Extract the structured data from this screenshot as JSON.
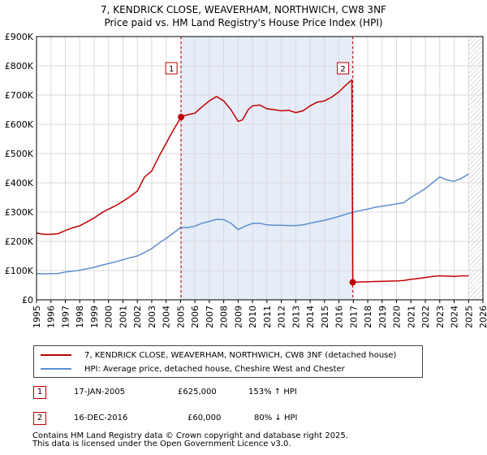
{
  "title_lines": [
    "7, KENDRICK CLOSE, WEAVERHAM, NORTHWICH, CW8 3NF",
    "Price paid vs. HM Land Registry's House Price Index (HPI)"
  ],
  "chart_data": {
    "type": "line",
    "title": "7, KENDRICK CLOSE, WEAVERHAM, NORTHWICH, CW8 3NF — Price paid vs. HM Land Registry's House Price Index (HPI)",
    "xlabel": "",
    "ylabel": "",
    "xlim": [
      1995,
      2026
    ],
    "ylim": [
      0,
      900000
    ],
    "x_ticks": [
      "1995",
      "1996",
      "1997",
      "1998",
      "1999",
      "2000",
      "2001",
      "2002",
      "2003",
      "2004",
      "2005",
      "2006",
      "2007",
      "2008",
      "2009",
      "2010",
      "2011",
      "2012",
      "2013",
      "2014",
      "2015",
      "2016",
      "2017",
      "2018",
      "2019",
      "2020",
      "2021",
      "2022",
      "2023",
      "2024",
      "2025",
      "2026"
    ],
    "y_ticks": [
      {
        "value": 0,
        "label": "£0"
      },
      {
        "value": 100000,
        "label": "£100K"
      },
      {
        "value": 200000,
        "label": "£200K"
      },
      {
        "value": 300000,
        "label": "£300K"
      },
      {
        "value": 400000,
        "label": "£400K"
      },
      {
        "value": 500000,
        "label": "£500K"
      },
      {
        "value": 600000,
        "label": "£600K"
      },
      {
        "value": 700000,
        "label": "£700K"
      },
      {
        "value": 800000,
        "label": "£800K"
      },
      {
        "value": 900000,
        "label": "£900K"
      }
    ],
    "grid": true,
    "shaded_period": [
      2005.04,
      2016.96
    ],
    "future_hatch_from": 2025.0,
    "series": [
      {
        "name": "7, KENDRICK CLOSE, WEAVERHAM, NORTHWICH, CW8 3NF (detached house)",
        "color": "#c00000",
        "x": [
          1995.0,
          1995.5,
          1996.0,
          1996.5,
          1997.0,
          1997.5,
          1998.0,
          1998.5,
          1999.0,
          1999.5,
          2000.0,
          2000.5,
          2001.0,
          2001.5,
          2002.0,
          2002.5,
          2003.0,
          2003.5,
          2004.0,
          2004.5,
          2005.04,
          2005.5,
          2006.0,
          2006.5,
          2007.0,
          2007.5,
          2008.0,
          2008.5,
          2009.0,
          2009.3,
          2009.7,
          2010.0,
          2010.5,
          2011.0,
          2011.5,
          2012.0,
          2012.5,
          2013.0,
          2013.5,
          2014.0,
          2014.5,
          2015.0,
          2015.5,
          2016.0,
          2016.5,
          2016.9,
          2016.96,
          2017.5,
          2018.0,
          2018.5,
          2019.0,
          2019.5,
          2020.0,
          2020.5,
          2021.0,
          2021.5,
          2022.0,
          2022.5,
          2023.0,
          2023.5,
          2024.0,
          2024.5,
          2025.0
        ],
        "y": [
          228000,
          224000,
          224000,
          226000,
          237000,
          246000,
          253000,
          266000,
          280000,
          297000,
          310000,
          322000,
          337000,
          353000,
          372000,
          420000,
          440000,
          490000,
          535000,
          580000,
          625000,
          633000,
          638000,
          660000,
          680000,
          695000,
          680000,
          650000,
          610000,
          615000,
          650000,
          663000,
          666000,
          653000,
          650000,
          646000,
          648000,
          640000,
          646000,
          663000,
          676000,
          680000,
          693000,
          711000,
          735000,
          752000,
          60000,
          61000,
          62000,
          62500,
          63000,
          64000,
          64500,
          66000,
          70000,
          73000,
          76000,
          80000,
          82000,
          81000,
          80000,
          82000,
          82000
        ]
      },
      {
        "name": "HPI: Average price, detached house, Cheshire West and Chester",
        "color": "#5b8fd0",
        "x": [
          1995.0,
          1995.5,
          1996.0,
          1996.5,
          1997.0,
          1997.5,
          1998.0,
          1998.5,
          1999.0,
          1999.5,
          2000.0,
          2000.5,
          2001.0,
          2001.5,
          2002.0,
          2002.5,
          2003.0,
          2003.5,
          2004.0,
          2004.5,
          2005.0,
          2005.5,
          2006.0,
          2006.5,
          2007.0,
          2007.5,
          2008.0,
          2008.5,
          2009.0,
          2009.5,
          2010.0,
          2010.5,
          2011.0,
          2011.5,
          2012.0,
          2012.5,
          2013.0,
          2013.5,
          2014.0,
          2014.5,
          2015.0,
          2015.5,
          2016.0,
          2016.5,
          2017.0,
          2017.5,
          2018.0,
          2018.5,
          2019.0,
          2019.5,
          2020.0,
          2020.5,
          2021.0,
          2021.5,
          2022.0,
          2022.5,
          2023.0,
          2023.5,
          2024.0,
          2024.5,
          2025.0
        ],
        "y": [
          90000,
          89000,
          89500,
          90000,
          95000,
          98000,
          101000,
          106000,
          111000,
          118000,
          124000,
          130000,
          137000,
          144000,
          150000,
          162000,
          175000,
          194000,
          210000,
          228000,
          247000,
          247000,
          252000,
          262000,
          268000,
          275000,
          274000,
          262000,
          240000,
          252000,
          261000,
          262000,
          256000,
          255000,
          255000,
          254000,
          254000,
          256000,
          262000,
          267000,
          272000,
          278000,
          285000,
          293000,
          300000,
          305000,
          310000,
          316000,
          320000,
          324000,
          328000,
          332000,
          350000,
          365000,
          380000,
          400000,
          420000,
          410000,
          405000,
          415000,
          430000
        ]
      }
    ],
    "annotations": [
      {
        "label": "1",
        "x": 2005.04,
        "y": 625000,
        "color": "#c00000"
      },
      {
        "label": "2",
        "x": 2016.96,
        "y": 60000,
        "color": "#c00000"
      }
    ]
  },
  "legend": {
    "items": [
      {
        "label": "7, KENDRICK CLOSE, WEAVERHAM, NORTHWICH, CW8 3NF (detached house)",
        "color": "#c00000"
      },
      {
        "label": "HPI: Average price, detached house, Cheshire West and Chester",
        "color": "#5b8fd0"
      }
    ]
  },
  "transactions": [
    {
      "num": "1",
      "date": "17-JAN-2005",
      "price": "£625,000",
      "hpi": "153% ↑ HPI"
    },
    {
      "num": "2",
      "date": "16-DEC-2016",
      "price": "£60,000",
      "hpi": "80% ↓ HPI"
    }
  ],
  "footer": {
    "line1": "Contains HM Land Registry data © Crown copyright and database right 2025.",
    "line2": "This data is licensed under the Open Government Licence v3.0."
  }
}
